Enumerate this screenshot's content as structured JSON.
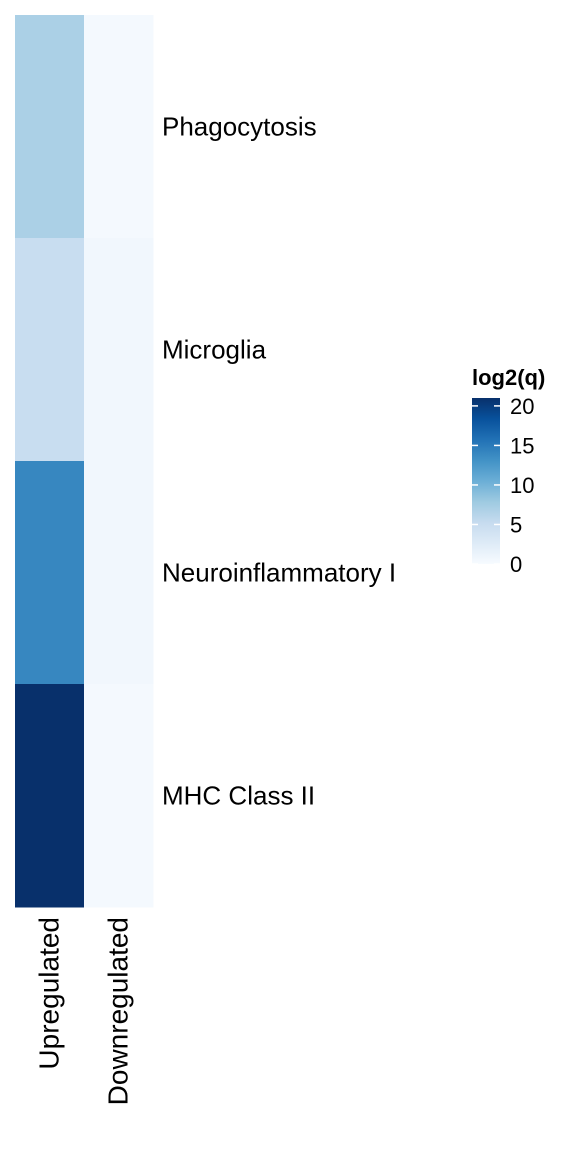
{
  "chart_data": {
    "type": "heatmap",
    "columns": [
      "Upregulated",
      "Downregulated"
    ],
    "rows": [
      "Phagocytosis",
      "Microglia",
      "Neuroinflammatory I",
      "MHC Class II"
    ],
    "values": [
      [
        7,
        0.3
      ],
      [
        5,
        0.6
      ],
      [
        14,
        0.6
      ],
      [
        22,
        0.3
      ]
    ],
    "legend": {
      "title": "log2(q)",
      "ticks": [
        0,
        5,
        10,
        15,
        20
      ],
      "range": [
        0,
        21
      ]
    },
    "colors": {
      "low": "#f7fbff",
      "stops": [
        "#f7fbff",
        "#deebf7",
        "#c6dbef",
        "#9ecae1",
        "#6baed6",
        "#4292c6",
        "#2171b5",
        "#08519c",
        "#08306b"
      ]
    }
  }
}
